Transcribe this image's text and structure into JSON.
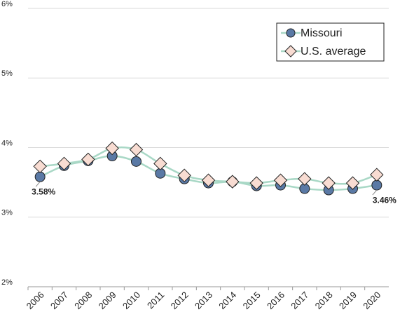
{
  "chart_data": {
    "type": "line",
    "categories": [
      "2006",
      "2007",
      "2008",
      "2009",
      "2010",
      "2011",
      "2012",
      "2013",
      "2014",
      "2015",
      "2016",
      "2017",
      "2018",
      "2019",
      "2020"
    ],
    "series": [
      {
        "name": "Missouri",
        "color": "#5a79a5",
        "line_color": "#a9d8c6",
        "marker": "circle",
        "values": [
          3.58,
          3.74,
          3.81,
          3.88,
          3.8,
          3.63,
          3.55,
          3.49,
          3.51,
          3.45,
          3.46,
          3.41,
          3.39,
          3.41,
          3.46
        ],
        "value_labels": [
          "3.58%",
          null,
          null,
          null,
          null,
          null,
          null,
          null,
          null,
          null,
          null,
          null,
          null,
          null,
          "3.46%"
        ]
      },
      {
        "name": "U.S. average",
        "color": "#f8dcd2",
        "line_color": "#a9d8c6",
        "marker": "diamond",
        "values": [
          3.73,
          3.77,
          3.83,
          3.99,
          3.97,
          3.77,
          3.6,
          3.53,
          3.51,
          3.49,
          3.53,
          3.55,
          3.49,
          3.49,
          3.61
        ]
      }
    ],
    "ylim": [
      2,
      6
    ],
    "yticks": [
      {
        "value": 2,
        "label": "2%"
      },
      {
        "value": 3,
        "label": "3%"
      },
      {
        "value": 4,
        "label": "4%"
      },
      {
        "value": 5,
        "label": "5%"
      },
      {
        "value": 6,
        "label": "6%"
      }
    ],
    "grid": true,
    "legend": "upper right"
  }
}
